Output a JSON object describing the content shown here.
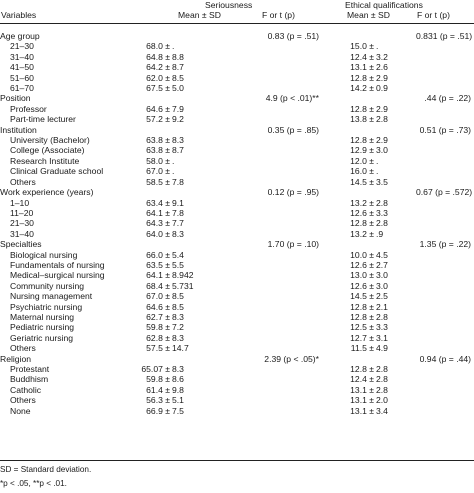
{
  "header": {
    "variables": "Variables",
    "seriousness": "Seriousness",
    "ethical": "Ethical qualifications",
    "mean_sd_1": "Mean ± SD",
    "f_1": "F or t (p)",
    "mean_sd_2": "Mean ± SD",
    "f_2": "F or t (p)"
  },
  "rows": [
    {
      "type": "group",
      "label": "Age group",
      "f1": "0.83 (p = .51)",
      "f2": "0.831 (p = .51)"
    },
    {
      "type": "sub",
      "label": "21–30",
      "s1": "68.0 ±",
      "s2": ".",
      "e1": "15.0 ±",
      "e2": "."
    },
    {
      "type": "sub",
      "label": "31–40",
      "s1": "64.8 ±",
      "s2": "8.8",
      "e1": "12.4 ±",
      "e2": "3.2"
    },
    {
      "type": "sub",
      "label": "41–50",
      "s1": "64.2 ±",
      "s2": "8.7",
      "e1": "13.1 ±",
      "e2": "2.6"
    },
    {
      "type": "sub",
      "label": "51–60",
      "s1": "62.0 ±",
      "s2": "8.5",
      "e1": "12.8 ±",
      "e2": "2.9"
    },
    {
      "type": "sub",
      "label": "61–70",
      "s1": "67.5 ±",
      "s2": "5.0",
      "e1": "14.2 ±",
      "e2": "0.9"
    },
    {
      "type": "group",
      "label": "Position",
      "f1": "4.9 (p < .01)**",
      "f2": ".44 (p = .22)"
    },
    {
      "type": "sub",
      "label": "Professor",
      "s1": "64.6 ±",
      "s2": "7.9",
      "e1": "12.8 ±",
      "e2": "2.9"
    },
    {
      "type": "sub",
      "label": "Part-time lecturer",
      "s1": "57.2 ±",
      "s2": "9.2",
      "e1": "13.8 ±",
      "e2": "2.8"
    },
    {
      "type": "group",
      "label": "Institution",
      "f1": "0.35 (p = .85)",
      "f2": "0.51 (p = .73)"
    },
    {
      "type": "sub",
      "label": "University (Bachelor)",
      "s1": "63.8 ±",
      "s2": "8.3",
      "e1": "12.8 ±",
      "e2": "2.9"
    },
    {
      "type": "sub",
      "label": "College (Associate)",
      "s1": "63.8 ±",
      "s2": "8.7",
      "e1": "12.9 ±",
      "e2": "3.0"
    },
    {
      "type": "sub",
      "label": "Research Institute",
      "s1": "58.0 ±",
      "s2": ".",
      "e1": "12.0 ±",
      "e2": "."
    },
    {
      "type": "sub",
      "label": "Clinical Graduate school",
      "s1": "67.0 ±",
      "s2": ".",
      "e1": "16.0 ±",
      "e2": "."
    },
    {
      "type": "sub",
      "label": "Others",
      "s1": "58.5 ±",
      "s2": "7.8",
      "e1": "14.5 ±",
      "e2": "3.5"
    },
    {
      "type": "group",
      "label": "Work experience (years)",
      "f1": "0.12 (p = .95)",
      "f2": "0.67 (p = .572)"
    },
    {
      "type": "sub",
      "label": "1–10",
      "s1": "63.4 ±",
      "s2": "9.1",
      "e1": "13.2 ±",
      "e2": "2.8"
    },
    {
      "type": "sub",
      "label": "11–20",
      "s1": "64.1 ±",
      "s2": "7.8",
      "e1": "12.6 ±",
      "e2": "3.3"
    },
    {
      "type": "sub",
      "label": "21–30",
      "s1": "64.3 ±",
      "s2": "7.7",
      "e1": "12.8 ±",
      "e2": "2.8"
    },
    {
      "type": "sub",
      "label": "31–40",
      "s1": "64.0 ±",
      "s2": "8.3",
      "e1": "13.2 ±",
      "e2": ".9"
    },
    {
      "type": "group",
      "label": "Specialties",
      "f1": "1.70 (p = .10)",
      "f2": "1.35 (p = .22)"
    },
    {
      "type": "sub",
      "label": "Biological nursing",
      "s1": "66.0 ±",
      "s2": "5.4",
      "e1": "10.0 ±",
      "e2": "4.5"
    },
    {
      "type": "sub",
      "label": "Fundamentals of nursing",
      "s1": "63.5 ±",
      "s2": "5.5",
      "e1": "12.6 ±",
      "e2": "2.7"
    },
    {
      "type": "sub",
      "label": "Medical–surgical nursing",
      "s1": "64.1 ±",
      "s2": "8.942",
      "e1": "13.0 ±",
      "e2": "3.0"
    },
    {
      "type": "sub",
      "label": "Community nursing",
      "s1": "68.4 ±",
      "s2": "5.731",
      "e1": "12.6 ±",
      "e2": "3.0"
    },
    {
      "type": "sub",
      "label": "Nursing management",
      "s1": "67.0 ±",
      "s2": "8.5",
      "e1": "14.5 ±",
      "e2": "2.5"
    },
    {
      "type": "sub",
      "label": "Psychiatric nursing",
      "s1": "64.6 ±",
      "s2": "8.5",
      "e1": "12.8 ±",
      "e2": "2.1"
    },
    {
      "type": "sub",
      "label": "Maternal nursing",
      "s1": "62.7 ±",
      "s2": "8.3",
      "e1": "12.8 ±",
      "e2": "2.8"
    },
    {
      "type": "sub",
      "label": "Pediatric nursing",
      "s1": "59.8 ±",
      "s2": "7.2",
      "e1": "12.5 ±",
      "e2": "3.3"
    },
    {
      "type": "sub",
      "label": "Geriatric nursing",
      "s1": "62.8 ±",
      "s2": "8.3",
      "e1": "12.7 ±",
      "e2": "3.1"
    },
    {
      "type": "sub",
      "label": "Others",
      "s1": "57.5 ±",
      "s2": "14.7",
      "e1": "11.5 ±",
      "e2": "4.9"
    },
    {
      "type": "group",
      "label": "Religion",
      "f1": "2.39 (p < .05)*",
      "f2": "0.94 (p = .44)"
    },
    {
      "type": "sub",
      "label": "Protestant",
      "s1": "65.07 ±",
      "s2": "8.3",
      "e1": "12.8 ±",
      "e2": "2.8"
    },
    {
      "type": "sub",
      "label": "Buddhism",
      "s1": "59.8 ±",
      "s2": "8.6",
      "e1": "12.4 ±",
      "e2": "2.8"
    },
    {
      "type": "sub",
      "label": "Catholic",
      "s1": "61.4 ±",
      "s2": "9.8",
      "e1": "13.1 ±",
      "e2": "2.8"
    },
    {
      "type": "sub",
      "label": "Others",
      "s1": "56.3 ±",
      "s2": "5.1",
      "e1": "13.1 ±",
      "e2": "2.0"
    },
    {
      "type": "sub",
      "label": "None",
      "s1": "66.9 ±",
      "s2": "7.5",
      "e1": "13.1 ±",
      "e2": "3.4"
    }
  ],
  "footnotes": {
    "line1": "SD = Standard deviation.",
    "line2": "*p < .05, **p < .01."
  }
}
